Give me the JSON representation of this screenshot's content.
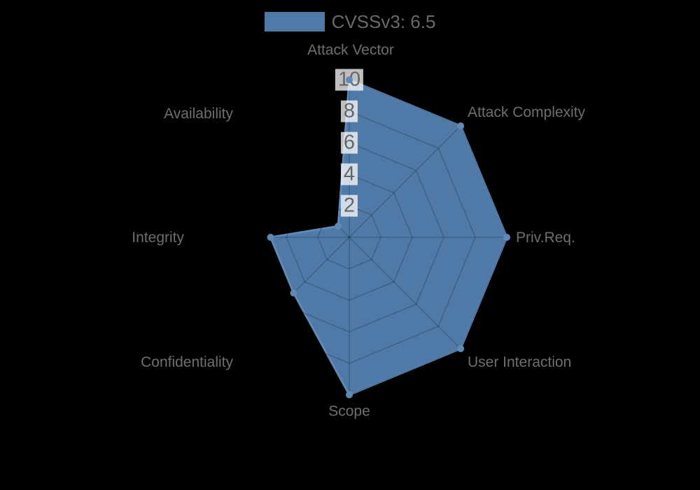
{
  "chart_data": {
    "type": "radar",
    "legend": {
      "label": "CVSSv3: 6.5",
      "position": "top"
    },
    "categories": [
      "Attack Vector",
      "Attack Complexity",
      "Priv.Req.",
      "User Interaction",
      "Scope",
      "Confidentiality",
      "Integrity",
      "Availability"
    ],
    "series": [
      {
        "name": "CVSSv3: 6.5",
        "values": [
          10,
          10,
          10,
          10,
          10,
          5,
          5,
          1
        ]
      }
    ],
    "scale": {
      "min": 0,
      "max": 10,
      "step": 2,
      "tick_labels": [
        "2",
        "4",
        "6",
        "8",
        "10"
      ],
      "grid": true
    },
    "colors": {
      "fill": "#4f7aa8",
      "border": "#6089b6",
      "marker": "#6089b6",
      "grid_line": "rgba(0,0,0,0.2)",
      "tick_backdrop": "rgba(255,255,255,0.75)",
      "label_text": "#6e6e6e",
      "tick_text": "#666666",
      "background": "#000000"
    }
  }
}
